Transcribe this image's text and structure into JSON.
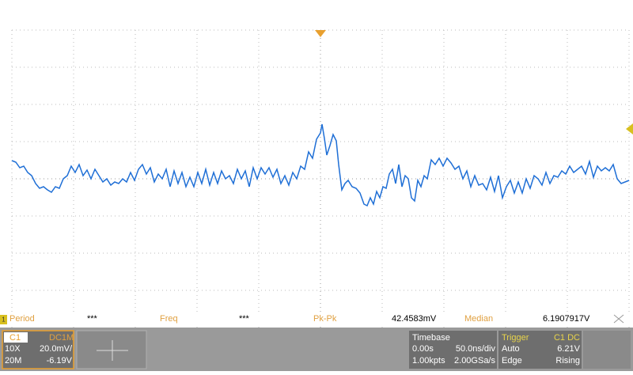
{
  "measurements": [
    {
      "label": "Period",
      "value": "***"
    },
    {
      "label": "Freq",
      "value": "***"
    },
    {
      "label": "Pk-Pk",
      "value": "42.4583mV"
    },
    {
      "label": "Median",
      "value": "6.1907917V"
    }
  ],
  "channel": {
    "name": "C1",
    "coupling": "DC1M",
    "probe": "10X",
    "scale": "20.0mV/",
    "bandwidth": "20M",
    "offset": "-6.19V"
  },
  "timebase": {
    "title": "Timebase",
    "delay": "0.00s",
    "scale": "50.0ns/div",
    "points": "1.00kpts",
    "rate": "2.00GSa/s"
  },
  "trigger": {
    "title": "Trigger",
    "source": "C1 DC",
    "mode": "Auto",
    "level": "6.21V",
    "type": "Edge",
    "slope": "Rising"
  },
  "channel_marker": "1"
}
